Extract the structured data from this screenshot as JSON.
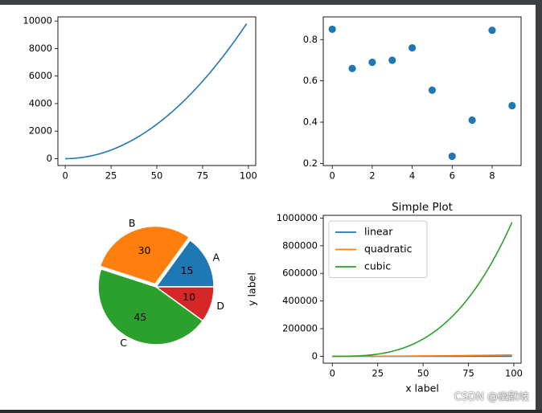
{
  "colors": {
    "blue": "#1f77b4",
    "orange": "#ff7f0e",
    "green": "#2ca02c",
    "red": "#d62728"
  },
  "watermark": "CSDN @幽默岐",
  "chart_data": [
    {
      "type": "line",
      "title": "",
      "xlabel": "",
      "ylabel": "",
      "xlim": [
        -4,
        104
      ],
      "ylim": [
        -500,
        10300
      ],
      "xticks": [
        0,
        25,
        50,
        75,
        100
      ],
      "yticks": [
        0,
        2000,
        4000,
        6000,
        8000,
        10000
      ],
      "series": [
        {
          "function": "x^2",
          "x_range": [
            0,
            99
          ],
          "color": "#1f77b4"
        }
      ]
    },
    {
      "type": "scatter",
      "title": "",
      "xlabel": "",
      "ylabel": "",
      "xlim": [
        -0.45,
        9.45
      ],
      "ylim": [
        0.19,
        0.91
      ],
      "xticks": [
        0,
        2,
        4,
        6,
        8
      ],
      "yticks": [
        0.2,
        0.4,
        0.6,
        0.8
      ],
      "x": [
        0,
        1,
        2,
        3,
        4,
        5,
        6,
        7,
        8,
        9
      ],
      "y": [
        0.85,
        0.66,
        0.69,
        0.7,
        0.76,
        0.555,
        0.235,
        0.41,
        0.845,
        0.48
      ],
      "color": "#1f77b4"
    },
    {
      "type": "pie",
      "labels": [
        "A",
        "B",
        "C",
        "D"
      ],
      "values": [
        15,
        30,
        45,
        10
      ],
      "explode": [
        0,
        0.05,
        0,
        0
      ],
      "colors": [
        "#1f77b4",
        "#ff7f0e",
        "#2ca02c",
        "#d62728"
      ]
    },
    {
      "type": "line",
      "title": "Simple Plot",
      "xlabel": "x label",
      "ylabel": "y label",
      "xlim": [
        -5,
        104
      ],
      "ylim": [
        -50000,
        1020000
      ],
      "xticks": [
        0,
        25,
        50,
        75,
        100
      ],
      "yticks": [
        0,
        200000,
        400000,
        600000,
        800000,
        1000000
      ],
      "legend_position": "top-left",
      "series": [
        {
          "name": "linear",
          "function": "x",
          "x_range": [
            0,
            99
          ],
          "color": "#1f77b4"
        },
        {
          "name": "quadratic",
          "function": "x^2",
          "x_range": [
            0,
            99
          ],
          "color": "#ff7f0e"
        },
        {
          "name": "cubic",
          "function": "x^3",
          "x_range": [
            0,
            99
          ],
          "color": "#2ca02c"
        }
      ]
    }
  ]
}
